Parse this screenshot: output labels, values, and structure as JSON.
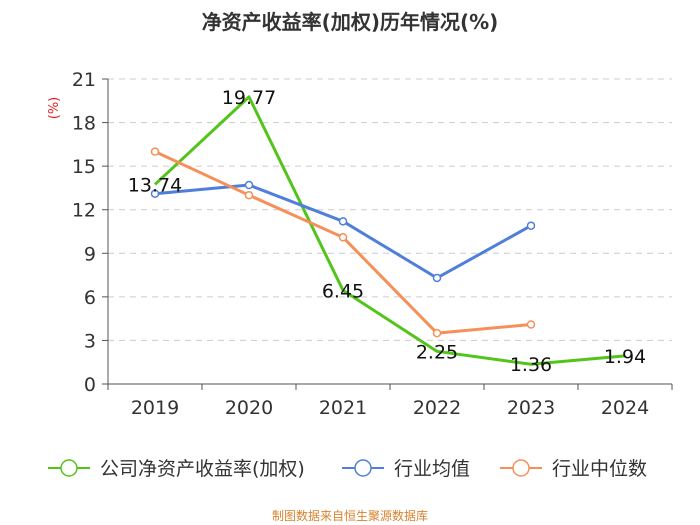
{
  "colors": {
    "company": "#52c41a",
    "industry_avg": "#4f7fdb",
    "industry_median": "#f5905a",
    "unit": "#e02020",
    "footer": "#d9822b",
    "axis": "#555555",
    "grid": "#cccccc"
  },
  "footer": "制图数据来自恒生聚源数据库",
  "chart_data": {
    "type": "line",
    "title": "净资产收益率(加权)历年情况(%)",
    "unit_label": "(%)",
    "xlabel": "",
    "ylabel": "(%)",
    "categories": [
      "2019",
      "2020",
      "2021",
      "2022",
      "2023",
      "2024"
    ],
    "ylim": [
      0,
      21
    ],
    "yticks": [
      0,
      3,
      6,
      9,
      12,
      15,
      18,
      21
    ],
    "grid": true,
    "legend_position": "bottom",
    "series": [
      {
        "name": "公司净资产收益率(加权)",
        "key": "company",
        "values": [
          13.74,
          19.77,
          6.45,
          2.25,
          1.36,
          1.94
        ],
        "labels": [
          "13.74",
          "19.77",
          "6.45",
          "2.25",
          "1.36",
          "1.94"
        ],
        "markers": [
          false,
          false,
          false,
          false,
          false,
          false
        ]
      },
      {
        "name": "行业均值",
        "key": "industry_avg",
        "values": [
          13.1,
          13.7,
          11.2,
          7.3,
          10.9,
          null
        ],
        "markers": [
          true,
          true,
          true,
          true,
          true,
          false
        ]
      },
      {
        "name": "行业中位数",
        "key": "industry_median",
        "values": [
          16.0,
          13.0,
          10.1,
          3.5,
          4.1,
          null
        ],
        "markers": [
          true,
          true,
          true,
          true,
          true,
          false
        ]
      }
    ]
  }
}
